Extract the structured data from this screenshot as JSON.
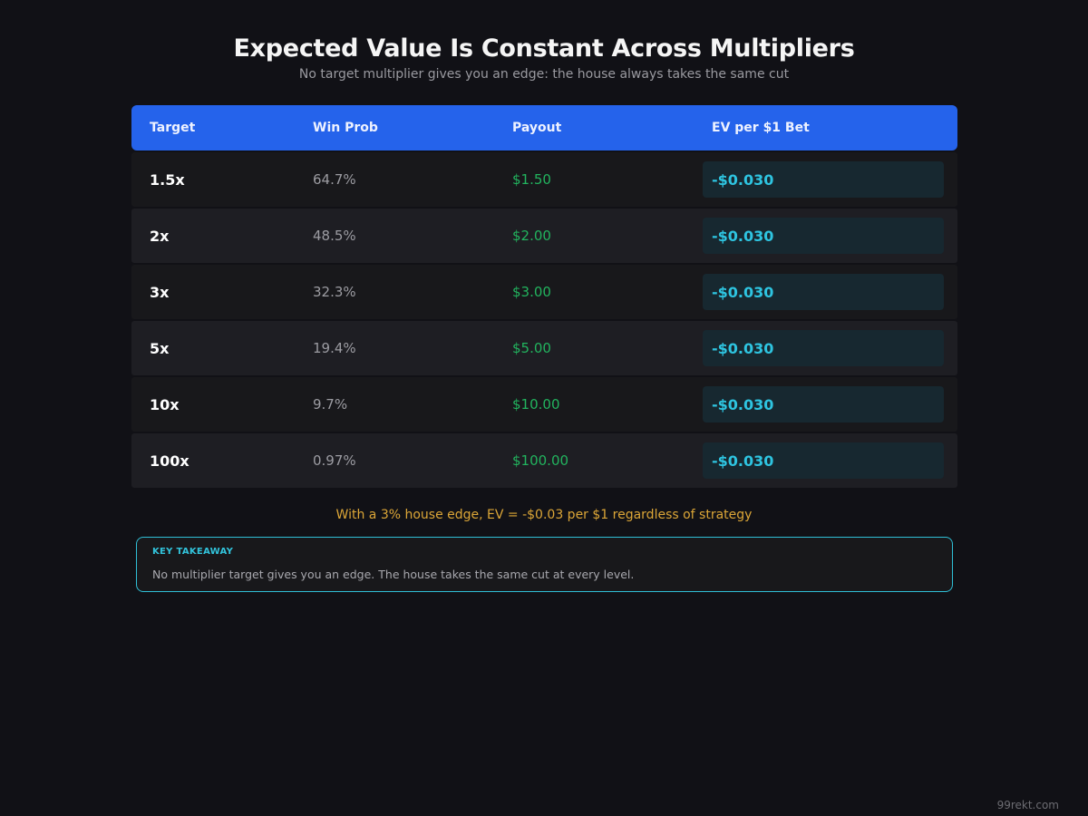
{
  "header": {
    "title": "Expected Value Is Constant Across Multipliers",
    "subtitle": "No target multiplier gives you an edge: the house always takes the same cut"
  },
  "table": {
    "columns": [
      "Target",
      "Win Prob",
      "Payout",
      "EV per $1 Bet"
    ],
    "rows": [
      {
        "target": "1.5x",
        "win_prob": "64.7%",
        "payout": "$1.50",
        "ev": "-$0.030"
      },
      {
        "target": "2x",
        "win_prob": "48.5%",
        "payout": "$2.00",
        "ev": "-$0.030"
      },
      {
        "target": "3x",
        "win_prob": "32.3%",
        "payout": "$3.00",
        "ev": "-$0.030"
      },
      {
        "target": "5x",
        "win_prob": "19.4%",
        "payout": "$5.00",
        "ev": "-$0.030"
      },
      {
        "target": "10x",
        "win_prob": "9.7%",
        "payout": "$10.00",
        "ev": "-$0.030"
      },
      {
        "target": "100x",
        "win_prob": "0.97%",
        "payout": "$100.00",
        "ev": "-$0.030"
      }
    ]
  },
  "note": "With a 3% house edge, EV = -$0.03 per $1 regardless of strategy",
  "takeaway": {
    "label": "KEY TAKEAWAY",
    "text": "No multiplier target gives you an edge. The house takes the same cut at every level."
  },
  "watermark": "99rekt.com",
  "colors": {
    "background": "#111116",
    "header_blue": "#2563eb",
    "payout_green": "#22b35e",
    "ev_cyan": "#2ec4e0",
    "note_amber": "#dca637",
    "takeaway_border": "#2fbfd6"
  }
}
